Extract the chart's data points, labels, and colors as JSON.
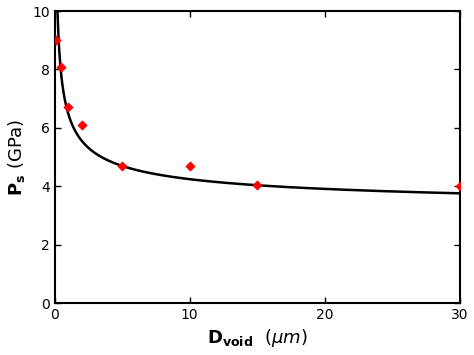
{
  "scatter_x": [
    0.1,
    0.5,
    1.0,
    2.0,
    5.0,
    10.0,
    15.0,
    30.0
  ],
  "scatter_y": [
    9.0,
    8.1,
    6.7,
    6.1,
    4.7,
    4.7,
    4.05,
    4.0
  ],
  "curve_params": {
    "a": 3.5,
    "b": 0.45,
    "c": 3.0
  },
  "xlim": [
    0,
    30
  ],
  "ylim": [
    0,
    10
  ],
  "xticks": [
    0,
    10,
    20,
    30
  ],
  "yticks": [
    0,
    2,
    4,
    6,
    8,
    10
  ],
  "scatter_color": "#ff0000",
  "scatter_marker": "D",
  "scatter_size": 22,
  "line_color": "#000000",
  "line_width": 1.8,
  "background_color": "#ffffff",
  "tick_direction": "in",
  "spine_linewidth": 1.5,
  "tick_labelsize": 10,
  "xlabel_fontsize": 13,
  "ylabel_fontsize": 13
}
